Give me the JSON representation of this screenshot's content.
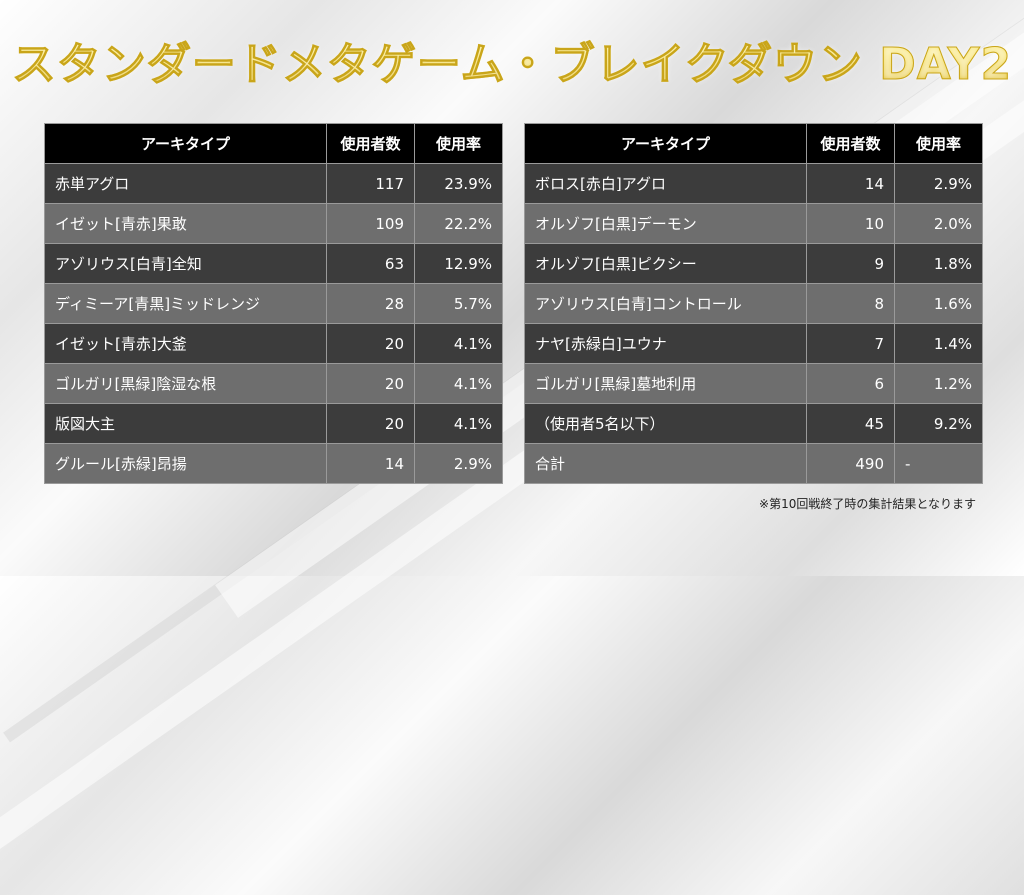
{
  "title": "スタンダードメタゲーム・ブレイクダウン DAY2",
  "headers": {
    "archetype": "アーキタイプ",
    "users": "使用者数",
    "rate": "使用率"
  },
  "left_rows": [
    {
      "name": "赤単アグロ",
      "users": "117",
      "rate": "23.9%"
    },
    {
      "name": "イゼット[青赤]果敢",
      "users": "109",
      "rate": "22.2%"
    },
    {
      "name": "アゾリウス[白青]全知",
      "users": "63",
      "rate": "12.9%"
    },
    {
      "name": "ディミーア[青黒]ミッドレンジ",
      "users": "28",
      "rate": "5.7%"
    },
    {
      "name": "イゼット[青赤]大釜",
      "users": "20",
      "rate": "4.1%"
    },
    {
      "name": "ゴルガリ[黒緑]陰湿な根",
      "users": "20",
      "rate": "4.1%"
    },
    {
      "name": "版図大主",
      "users": "20",
      "rate": "4.1%"
    },
    {
      "name": "グルール[赤緑]昂揚",
      "users": "14",
      "rate": "2.9%"
    }
  ],
  "right_rows": [
    {
      "name": "ボロス[赤白]アグロ",
      "users": "14",
      "rate": "2.9%"
    },
    {
      "name": "オルゾフ[白黒]デーモン",
      "users": "10",
      "rate": "2.0%"
    },
    {
      "name": "オルゾフ[白黒]ピクシー",
      "users": "9",
      "rate": "1.8%"
    },
    {
      "name": "アゾリウス[白青]コントロール",
      "users": "8",
      "rate": "1.6%"
    },
    {
      "name": "ナヤ[赤緑白]ユウナ",
      "users": "7",
      "rate": "1.4%"
    },
    {
      "name": "ゴルガリ[黒緑]墓地利用",
      "users": "6",
      "rate": "1.2%"
    },
    {
      "name": "（使用者5名以下）",
      "users": "45",
      "rate": "9.2%"
    },
    {
      "name": "合計",
      "users": "490",
      "rate": "-"
    }
  ],
  "note": "※第10回戦終了時の集計結果となります"
}
